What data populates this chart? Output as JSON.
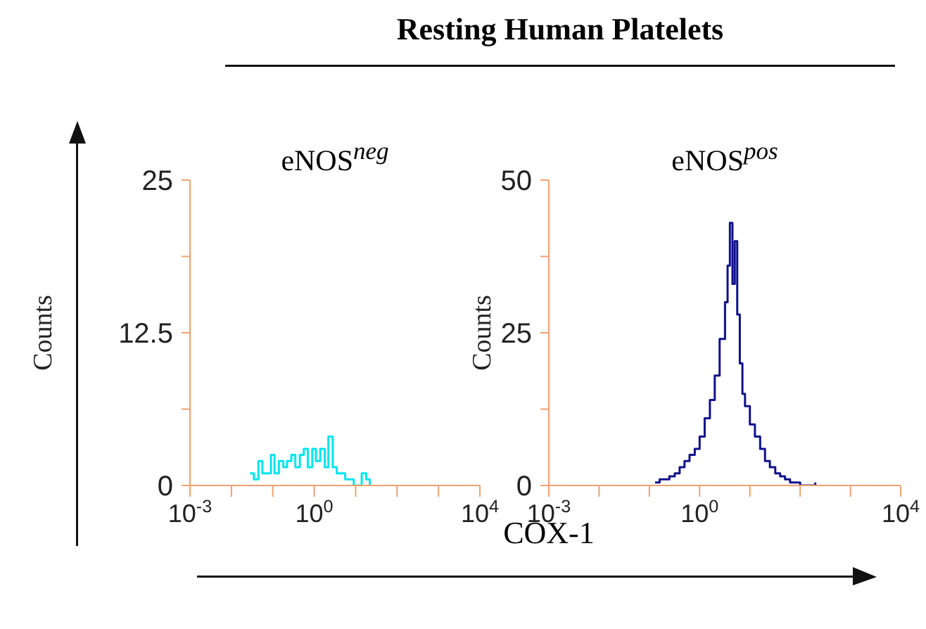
{
  "chart_data": [
    {
      "type": "step",
      "title": "Resting Human Platelets",
      "subtitle": "eNOS$^{neg}$",
      "ylabel": "Counts",
      "log": "x",
      "color": "#00e5ee",
      "x": [
        0.028,
        0.035,
        0.045,
        0.056,
        0.07,
        0.09,
        0.11,
        0.14,
        0.18,
        0.22,
        0.28,
        0.35,
        0.45,
        0.56,
        0.7,
        0.9,
        1.1,
        1.4,
        1.8,
        2.2,
        2.8,
        3.5,
        4.5,
        5.6,
        7,
        9,
        11,
        14,
        18,
        22
      ],
      "values": [
        1,
        0.5,
        2,
        1,
        1,
        2.5,
        1,
        2,
        1.5,
        2,
        2.5,
        1.5,
        2.5,
        3,
        1.5,
        3,
        2,
        3,
        1.5,
        4,
        1.5,
        1,
        1,
        0.5,
        0.5,
        0,
        0,
        1,
        0.5,
        0
      ],
      "xlim": [
        0.001,
        10000
      ],
      "xticks": [
        {
          "value": 0.001,
          "label": "10$^{-3}$"
        },
        {
          "value": 0.01,
          "label": null
        },
        {
          "value": 0.1,
          "label": null
        },
        {
          "value": 1,
          "label": "10$^{0}$"
        },
        {
          "value": 10,
          "label": null
        },
        {
          "value": 100,
          "label": null
        },
        {
          "value": 1000,
          "label": null
        },
        {
          "value": 10000,
          "label": "10$^{4}$"
        }
      ],
      "ylim": [
        0,
        25
      ],
      "yticks": [
        0,
        {
          "value": 6.25,
          "label": null
        },
        12.5,
        {
          "value": 18.75,
          "label": null
        },
        25
      ]
    },
    {
      "type": "step",
      "subtitle": "eNOS$^{pos}$",
      "xlabel": "COX-1",
      "ylabel": "Counts",
      "log": "x",
      "color": "#10108a",
      "x": [
        0.13,
        0.16,
        0.2,
        0.25,
        0.32,
        0.4,
        0.5,
        0.63,
        0.8,
        1,
        1.26,
        1.6,
        2,
        2.5,
        3.2,
        3.6,
        4,
        4.5,
        5,
        5.6,
        6.3,
        7.1,
        8,
        10,
        12.6,
        16,
        20,
        25,
        32,
        40,
        50,
        63,
        80,
        100,
        200
      ],
      "values": [
        0.5,
        1,
        1,
        1.5,
        2,
        3,
        4,
        5,
        6,
        8,
        11,
        14,
        18,
        24,
        30,
        36,
        43,
        33,
        40,
        28,
        20,
        15,
        13,
        10,
        8,
        6,
        4,
        3,
        2,
        1.5,
        1,
        0.5,
        0.5,
        0,
        0.5
      ],
      "xlim": [
        0.001,
        10000
      ],
      "xticks": [
        {
          "value": 0.001,
          "label": "10$^{-3}$"
        },
        {
          "value": 0.01,
          "label": null
        },
        {
          "value": 0.1,
          "label": null
        },
        {
          "value": 1,
          "label": "10$^{0}$"
        },
        {
          "value": 10,
          "label": null
        },
        {
          "value": 100,
          "label": null
        },
        {
          "value": 1000,
          "label": null
        },
        {
          "value": 10000,
          "label": "10$^{4}$"
        }
      ],
      "ylim": [
        0,
        50
      ],
      "yticks": [
        0,
        {
          "value": 12.5,
          "label": null
        },
        25,
        {
          "value": 37.5,
          "label": null
        },
        50
      ]
    }
  ]
}
